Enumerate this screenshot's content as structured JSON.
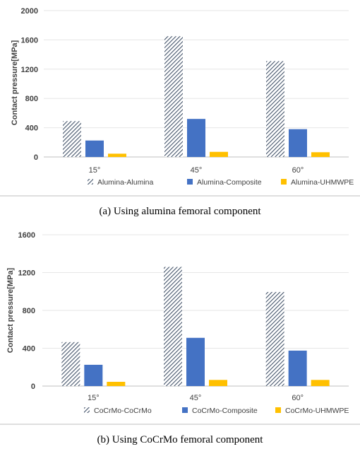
{
  "chart_data": [
    {
      "type": "bar",
      "categories": [
        "15°",
        "45°",
        "60°"
      ],
      "series": [
        {
          "name": "Alumina-Alumina",
          "values": [
            490,
            1650,
            1310
          ],
          "color": "#44546A",
          "pattern": "hatch"
        },
        {
          "name": "Alumina-Composite",
          "values": [
            225,
            520,
            380
          ],
          "color": "#4472C4",
          "pattern": "solid"
        },
        {
          "name": "Alumina-UHMWPE",
          "values": [
            45,
            70,
            65
          ],
          "color": "#FFC000",
          "pattern": "solid"
        }
      ],
      "ylabel": "Contact pressure[MPa]",
      "ylim": [
        0,
        2000
      ],
      "yticks": [
        0,
        400,
        800,
        1200,
        1600,
        2000
      ],
      "grid": true,
      "legend": "bottom",
      "caption": "(a) Using alumina femoral component"
    },
    {
      "type": "bar",
      "categories": [
        "15°",
        "45°",
        "60°"
      ],
      "series": [
        {
          "name": "CoCrMo-CoCrMo",
          "values": [
            465,
            1260,
            995
          ],
          "color": "#44546A",
          "pattern": "hatch"
        },
        {
          "name": "CoCrMo-Composite",
          "values": [
            225,
            510,
            375
          ],
          "color": "#4472C4",
          "pattern": "solid"
        },
        {
          "name": "CoCrMo-UHMWPE",
          "values": [
            45,
            65,
            65
          ],
          "color": "#FFC000",
          "pattern": "solid"
        }
      ],
      "ylabel": "Contact pressure[MPa]",
      "ylim": [
        0,
        1600
      ],
      "yticks": [
        0,
        400,
        800,
        1200,
        1600
      ],
      "grid": true,
      "legend": "bottom",
      "caption": "(b) Using CoCrMo femoral component"
    }
  ]
}
